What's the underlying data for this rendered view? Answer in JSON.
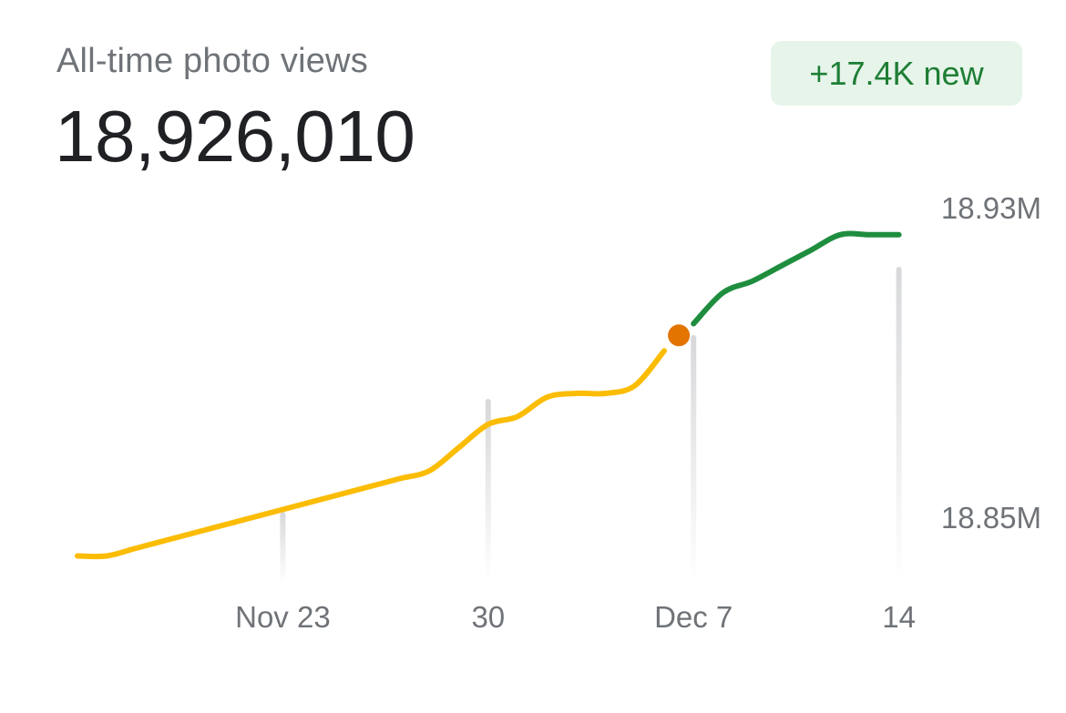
{
  "header": {
    "label": "All-time photo views",
    "total": "18,926,010"
  },
  "badge": {
    "text": "+17.4K new"
  },
  "colors": {
    "past_series": "#FBBC04",
    "new_series": "#1E8E3E",
    "marker": "#E37400",
    "badge_bg": "#E6F4EA",
    "badge_text": "#1E7E34"
  },
  "chart_data": {
    "type": "line",
    "x_tick_labels": [
      "Nov 23",
      "30",
      "Dec 7",
      "14"
    ],
    "x_tick_days": [
      7,
      14,
      21,
      28
    ],
    "y_tick_labels": [
      "18.85M",
      "18.93M"
    ],
    "y_tick_values": [
      18.85,
      18.93
    ],
    "y_unit": "M",
    "series": [
      {
        "role": "past",
        "points": [
          [
            0,
            18.84
          ],
          [
            1,
            18.84
          ],
          [
            2,
            18.842
          ],
          [
            3,
            18.844
          ],
          [
            4,
            18.846
          ],
          [
            5,
            18.848
          ],
          [
            6,
            18.85
          ],
          [
            7,
            18.852
          ],
          [
            8,
            18.854
          ],
          [
            9,
            18.856
          ],
          [
            10,
            18.858
          ],
          [
            11,
            18.86
          ],
          [
            12,
            18.862
          ],
          [
            13,
            18.868
          ],
          [
            14,
            18.874
          ],
          [
            15,
            18.876
          ],
          [
            16,
            18.881
          ],
          [
            17,
            18.882
          ],
          [
            18,
            18.882
          ],
          [
            19,
            18.884
          ],
          [
            20,
            18.893
          ]
        ]
      },
      {
        "role": "new",
        "points": [
          [
            21,
            18.9
          ],
          [
            22,
            18.908
          ],
          [
            23,
            18.911
          ],
          [
            24,
            18.915
          ],
          [
            25,
            18.919
          ],
          [
            26,
            18.923
          ],
          [
            27,
            18.923
          ],
          [
            28,
            18.923
          ]
        ]
      }
    ],
    "marker_point": [
      20.5,
      18.897
    ],
    "grid": false,
    "legend": "none"
  }
}
